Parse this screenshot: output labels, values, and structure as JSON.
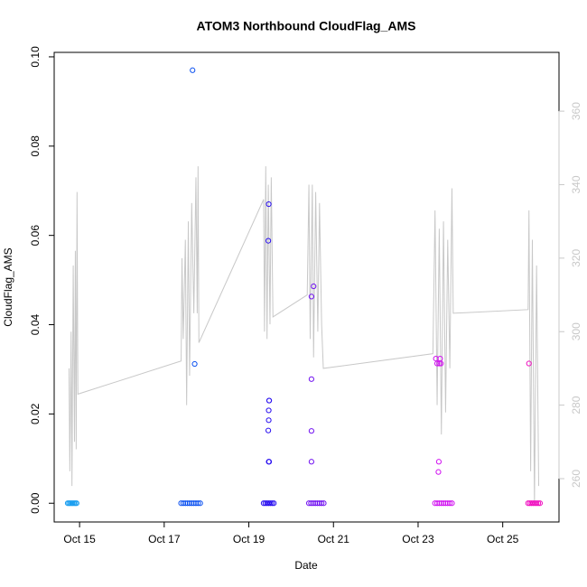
{
  "chart_data": {
    "type": "scatter",
    "title": "ATOM3 Northbound CloudFlag_AMS",
    "x_label": "Date",
    "y_label": "CloudFlag_AMS",
    "xlim": [
      14.4,
      26.33
    ],
    "xticks": [
      {
        "value": 15,
        "label": "Oct 15"
      },
      {
        "value": 17,
        "label": "Oct 17"
      },
      {
        "value": 19,
        "label": "Oct 19"
      },
      {
        "value": 21,
        "label": "Oct 21"
      },
      {
        "value": 23,
        "label": "Oct 23"
      },
      {
        "value": 25,
        "label": "Oct 25"
      }
    ],
    "ylim": [
      -0.0042,
      0.101
    ],
    "yticks": [
      {
        "value": 0,
        "label": "0.00"
      },
      0.02,
      0.04,
      0.06,
      0.08,
      {
        "value": 0.1,
        "label": "0.10"
      }
    ],
    "y2lim": [
      248.2,
      376
    ],
    "y2ticks": [
      260,
      280,
      300,
      320,
      340,
      360
    ],
    "y2_color": "#c8c8c8",
    "series": [
      {
        "color": "#1a9ef0",
        "x": [
          14.72,
          14.75,
          14.78,
          14.81,
          14.84,
          14.87,
          14.9,
          14.93
        ],
        "values": [
          0,
          0,
          0,
          0,
          0,
          0,
          0,
          0
        ]
      },
      {
        "color": "#0a50f0",
        "x": [
          17.4,
          17.45,
          17.5,
          17.55,
          17.6,
          17.65,
          17.7,
          17.75,
          17.8,
          17.85,
          17.67,
          17.72
        ],
        "values": [
          0,
          0,
          0,
          0,
          0,
          0,
          0,
          0,
          0,
          0,
          0.097,
          0.0312
        ]
      },
      {
        "color": "#2a10f0",
        "x": [
          19.35,
          19.39,
          19.43,
          19.47,
          19.51,
          19.55,
          19.59,
          19.47,
          19.46,
          19.48,
          19.48,
          19.47,
          19.47,
          19.46,
          19.47,
          19.48
        ],
        "values": [
          0,
          0,
          0,
          0,
          0,
          0,
          0,
          0.067,
          0.0588,
          0.023,
          0.023,
          0.0208,
          0.0186,
          0.0163,
          0.0093,
          0.0093
        ]
      },
      {
        "color": "#7010f0",
        "x": [
          20.42,
          20.47,
          20.52,
          20.57,
          20.62,
          20.67,
          20.72,
          20.77,
          20.48,
          20.48,
          20.48,
          20.48,
          20.53
        ],
        "values": [
          0,
          0,
          0,
          0,
          0,
          0,
          0,
          0,
          0.0463,
          0.0278,
          0.0162,
          0.0093,
          0.0486
        ]
      },
      {
        "color": "#d010f0",
        "x": [
          23.4,
          23.45,
          23.5,
          23.55,
          23.6,
          23.65,
          23.7,
          23.75,
          23.8,
          23.42,
          23.45,
          23.5,
          23.49,
          23.52,
          23.48,
          23.54
        ],
        "values": [
          0,
          0,
          0,
          0,
          0,
          0,
          0,
          0,
          0,
          0.0324,
          0.0313,
          0.0313,
          0.0093,
          0.0324,
          0.007,
          0.0313
        ]
      },
      {
        "color": "#f010c0",
        "x": [
          25.6,
          25.64,
          25.68,
          25.72,
          25.76,
          25.8,
          25.84,
          25.88,
          25.62
        ],
        "values": [
          0,
          0,
          0,
          0,
          0,
          0,
          0,
          0,
          0.0313
        ]
      },
      {
        "color": "#c8c8c8",
        "axis": "y2",
        "style": "line",
        "x": [
          14.75,
          14.77,
          14.8,
          14.82,
          14.85,
          14.88,
          14.9,
          14.92,
          14.94,
          14.96,
          17.4,
          17.42,
          17.45,
          17.5,
          17.53,
          17.57,
          17.6,
          17.65,
          17.7,
          17.75,
          17.78,
          17.8,
          17.82,
          19.35,
          19.37,
          19.4,
          19.43,
          19.46,
          19.5,
          19.53,
          19.57,
          20.38,
          20.42,
          20.45,
          20.5,
          20.53,
          20.58,
          20.63,
          20.67,
          20.72,
          20.76,
          23.35,
          23.4,
          23.45,
          23.5,
          23.55,
          23.6,
          23.65,
          23.7,
          23.75,
          23.8,
          23.83,
          25.6,
          25.62,
          25.66,
          25.7,
          25.75,
          25.8,
          25.85
        ],
        "values": [
          290,
          262,
          300,
          258,
          318,
          270,
          322,
          268,
          338,
          283,
          292,
          320,
          298,
          325,
          280,
          330,
          288,
          335,
          305,
          342,
          305,
          345,
          297,
          336,
          300,
          345,
          298,
          340,
          302,
          342,
          304,
          310,
          340,
          298,
          340,
          293,
          338,
          300,
          335,
          302,
          290,
          294,
          333,
          280,
          328,
          272,
          330,
          278,
          325,
          290,
          339,
          305,
          306,
          333,
          262,
          325,
          253,
          318,
          258
        ]
      }
    ]
  }
}
